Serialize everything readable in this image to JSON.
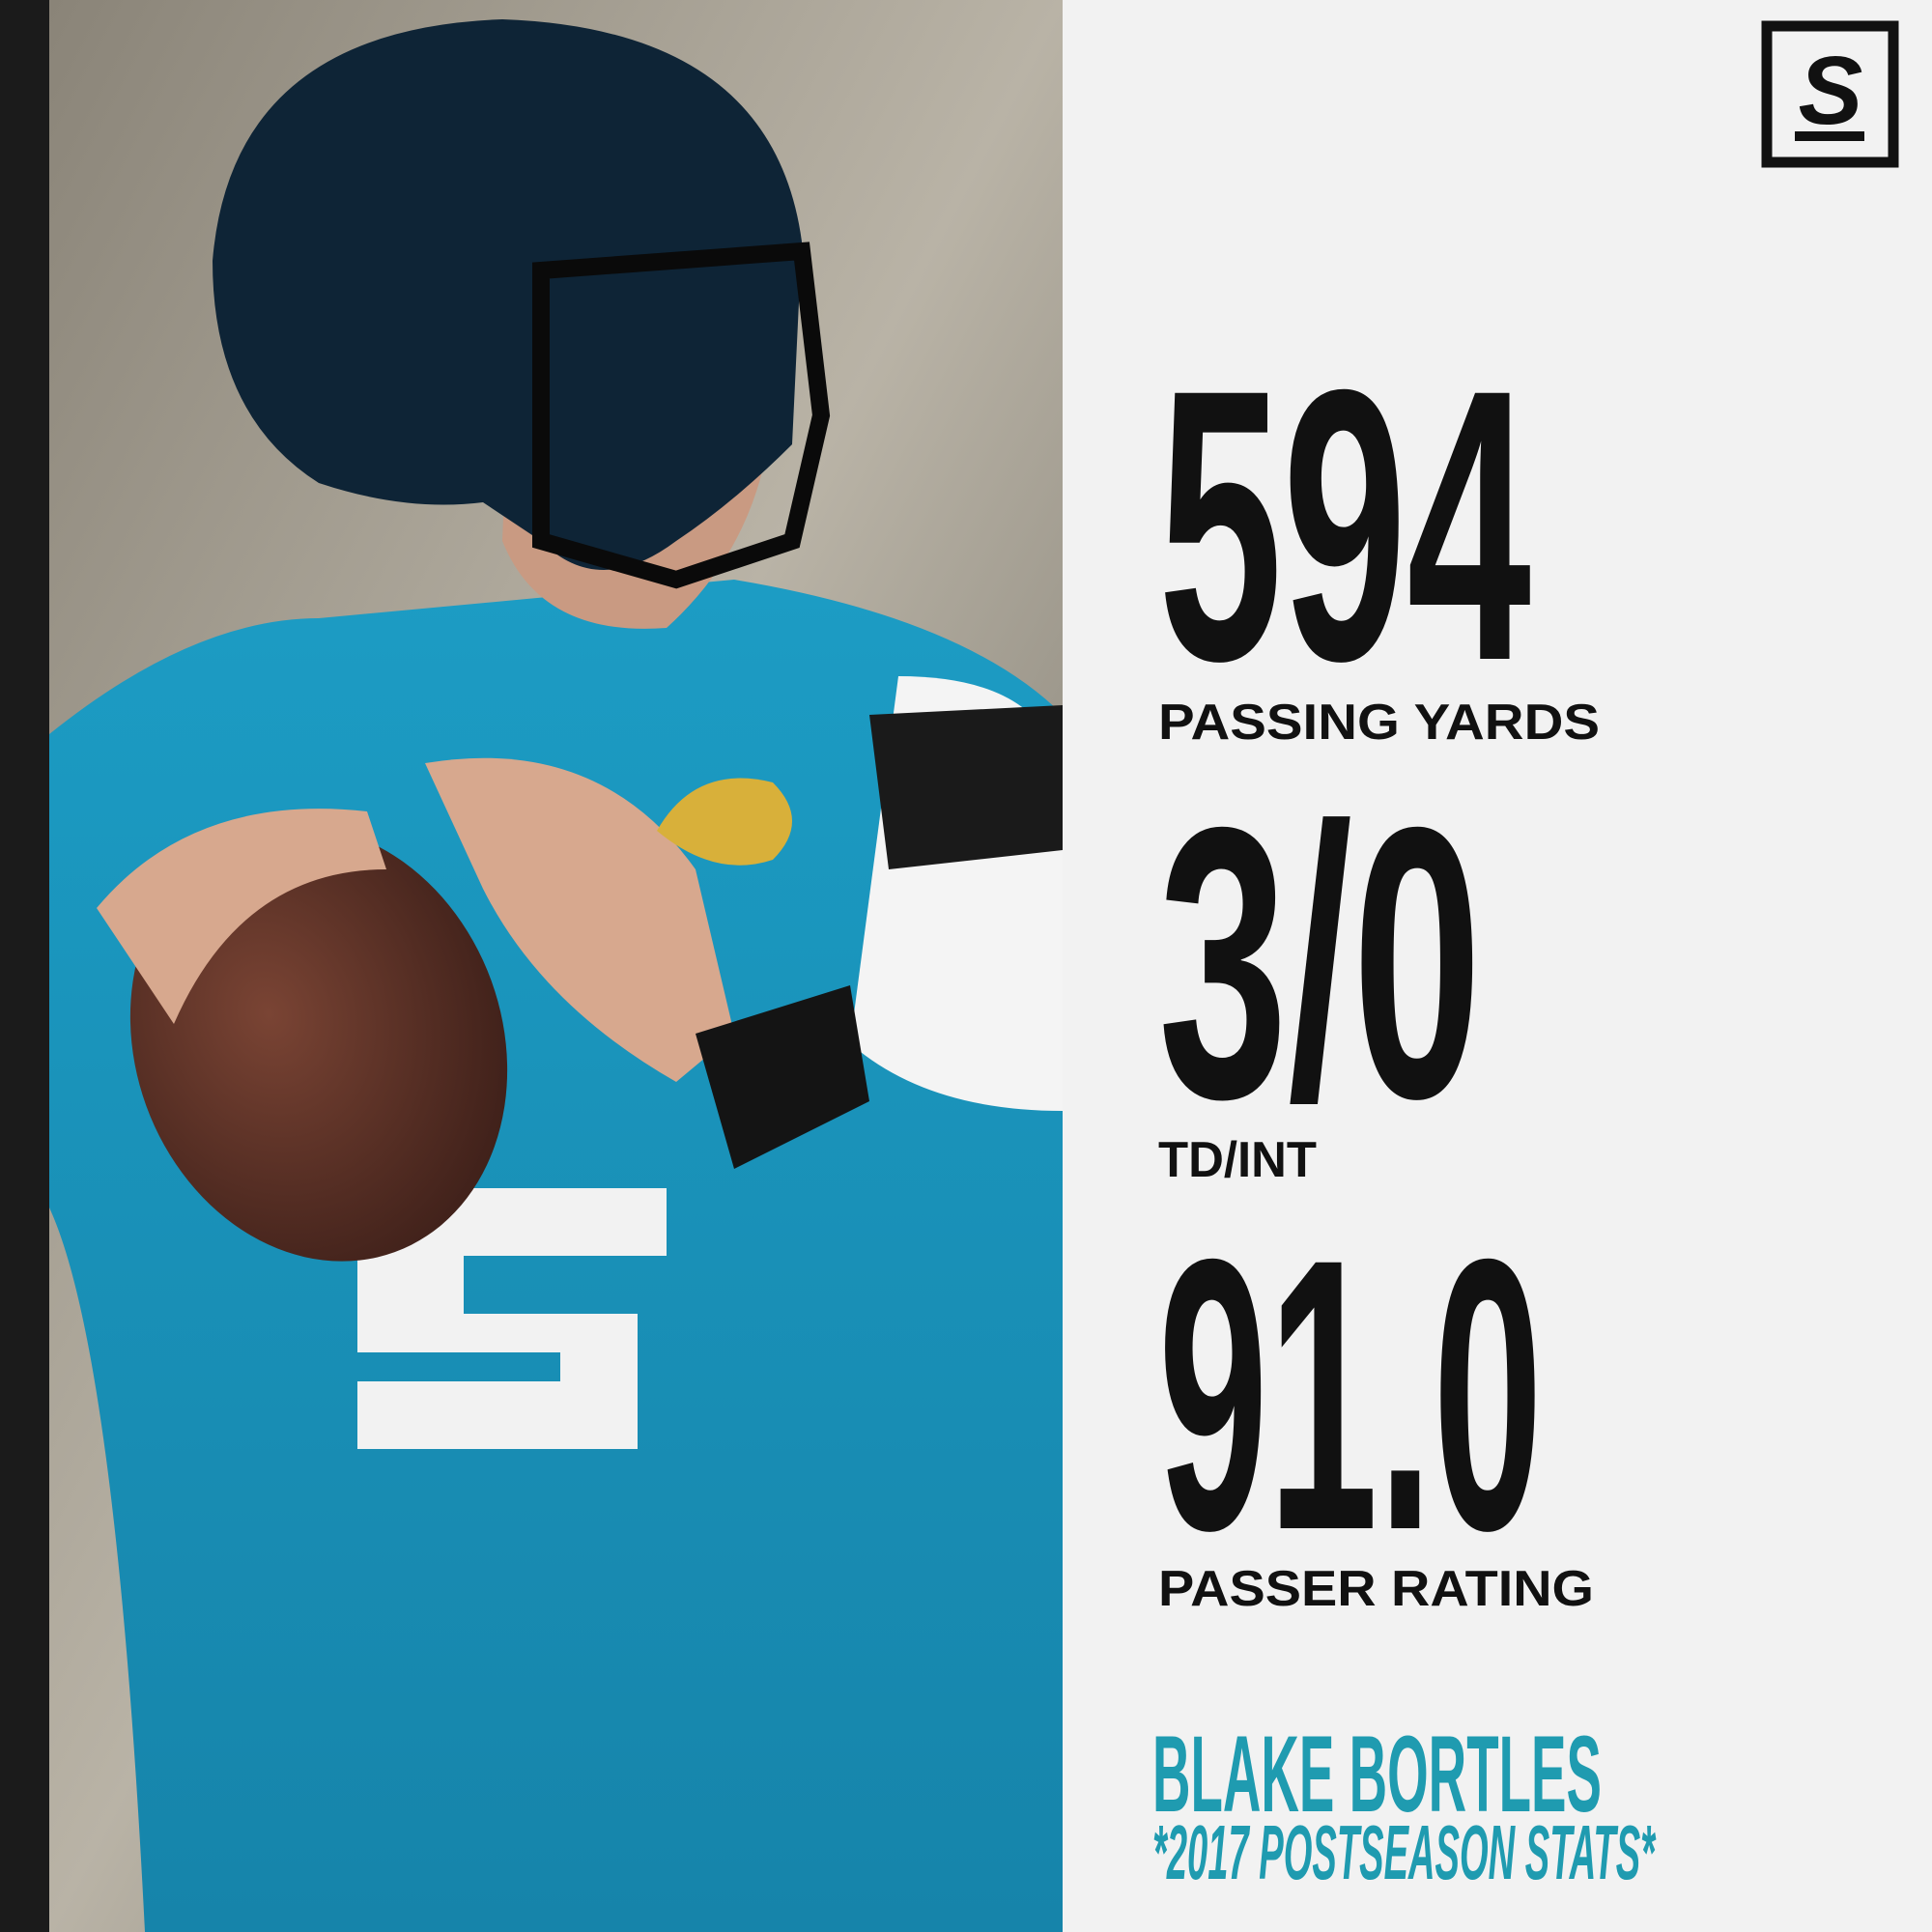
{
  "logo": {
    "text": "S"
  },
  "stats": [
    {
      "value": "594",
      "label": "PASSING YARDS"
    },
    {
      "value": "3/0",
      "label": "TD/INT"
    },
    {
      "value": "91.0",
      "label": "PASSER RATING"
    }
  ],
  "footer": {
    "name": "BLAKE BORTLES",
    "subtitle": "*2017 POSTSEASON STATS*"
  }
}
